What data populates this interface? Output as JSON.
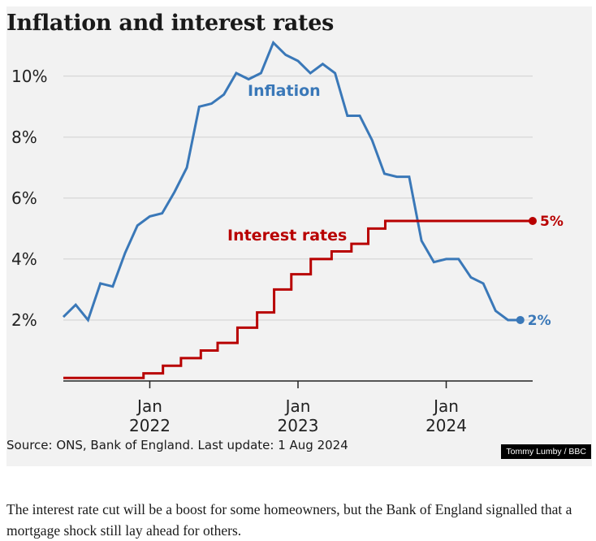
{
  "chart_data": {
    "type": "line",
    "title": "Inflation and interest rates",
    "y_ticks": [
      {
        "value": 2,
        "label": "2%"
      },
      {
        "value": 4,
        "label": "4%"
      },
      {
        "value": 6,
        "label": "6%"
      },
      {
        "value": 8,
        "label": "8%"
      },
      {
        "value": 10,
        "label": "10%"
      }
    ],
    "ylim": [
      0,
      11.3
    ],
    "xlim": [
      "2021-06",
      "2024-08"
    ],
    "x_ticks": [
      {
        "x": "2022-01",
        "label_top": "Jan",
        "label_bottom": "2022"
      },
      {
        "x": "2023-01",
        "label_top": "Jan",
        "label_bottom": "2023"
      },
      {
        "x": "2024-01",
        "label_top": "Jan",
        "label_bottom": "2024"
      }
    ],
    "grid": true,
    "series": [
      {
        "name": "Inflation",
        "style": "line",
        "color": "#3a78b8",
        "end_label": "2%",
        "points": [
          [
            "2021-06",
            2.1
          ],
          [
            "2021-07",
            2.5
          ],
          [
            "2021-08",
            2.0
          ],
          [
            "2021-09",
            3.2
          ],
          [
            "2021-10",
            3.1
          ],
          [
            "2021-11",
            4.2
          ],
          [
            "2021-12",
            5.1
          ],
          [
            "2022-01",
            5.4
          ],
          [
            "2022-02",
            5.5
          ],
          [
            "2022-03",
            6.2
          ],
          [
            "2022-04",
            7.0
          ],
          [
            "2022-05",
            9.0
          ],
          [
            "2022-06",
            9.1
          ],
          [
            "2022-07",
            9.4
          ],
          [
            "2022-08",
            10.1
          ],
          [
            "2022-09",
            9.9
          ],
          [
            "2022-10",
            10.1
          ],
          [
            "2022-11",
            11.1
          ],
          [
            "2022-12",
            10.7
          ],
          [
            "2023-01",
            10.5
          ],
          [
            "2023-02",
            10.1
          ],
          [
            "2023-03",
            10.4
          ],
          [
            "2023-04",
            10.1
          ],
          [
            "2023-05",
            8.7
          ],
          [
            "2023-06",
            8.7
          ],
          [
            "2023-07",
            7.9
          ],
          [
            "2023-08",
            6.8
          ],
          [
            "2023-09",
            6.7
          ],
          [
            "2023-10",
            6.7
          ],
          [
            "2023-11",
            4.6
          ],
          [
            "2023-12",
            3.9
          ],
          [
            "2024-01",
            4.0
          ],
          [
            "2024-02",
            4.0
          ],
          [
            "2024-03",
            3.4
          ],
          [
            "2024-04",
            3.2
          ],
          [
            "2024-05",
            2.3
          ],
          [
            "2024-06",
            2.0
          ],
          [
            "2024-07",
            2.0
          ]
        ]
      },
      {
        "name": "Interest rates",
        "style": "step",
        "color": "#b80000",
        "end_label": "5%",
        "points": [
          [
            "2021-06",
            0.1
          ],
          [
            "2021-12-16",
            0.25
          ],
          [
            "2022-02-03",
            0.5
          ],
          [
            "2022-03-17",
            0.75
          ],
          [
            "2022-05-05",
            1.0
          ],
          [
            "2022-06-16",
            1.25
          ],
          [
            "2022-08-04",
            1.75
          ],
          [
            "2022-09-22",
            2.25
          ],
          [
            "2022-11-03",
            3.0
          ],
          [
            "2022-12-15",
            3.5
          ],
          [
            "2023-02-02",
            4.0
          ],
          [
            "2023-03-23",
            4.25
          ],
          [
            "2023-05-11",
            4.5
          ],
          [
            "2023-06-22",
            5.0
          ],
          [
            "2023-08-03",
            5.25
          ],
          [
            "2024-08-01",
            5.25
          ]
        ]
      }
    ]
  },
  "source": "Source: ONS, Bank of England. Last update: 1 Aug 2024",
  "credit": "Tommy Lumby / BBC",
  "caption": "The interest rate cut will be a boost for some homeowners, but the Bank of England signalled that a mortgage shock still lay ahead for others."
}
